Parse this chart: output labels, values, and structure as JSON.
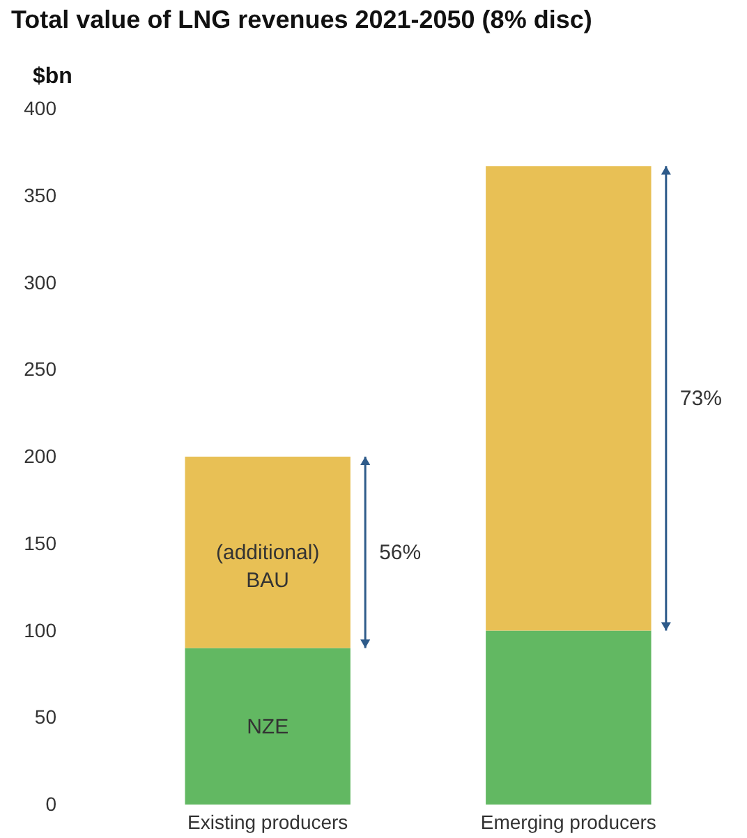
{
  "chart_data": {
    "type": "bar",
    "title": "Total value of LNG revenues 2021-2050 (8% disc)",
    "ylabel": "$bn",
    "categories": [
      "Existing producers",
      "Emerging producers"
    ],
    "stacked": true,
    "ylim": [
      0,
      400
    ],
    "yticks": [
      0,
      50,
      100,
      150,
      200,
      250,
      300,
      350,
      400
    ],
    "grid": false,
    "legend": false,
    "series": [
      {
        "name": "NZE",
        "color": "#62b862",
        "values": [
          90,
          100
        ]
      },
      {
        "name": "(additional) BAU",
        "color": "#e8c055",
        "values": [
          110,
          267
        ]
      }
    ],
    "annotations": [
      "56%",
      "73%"
    ]
  }
}
